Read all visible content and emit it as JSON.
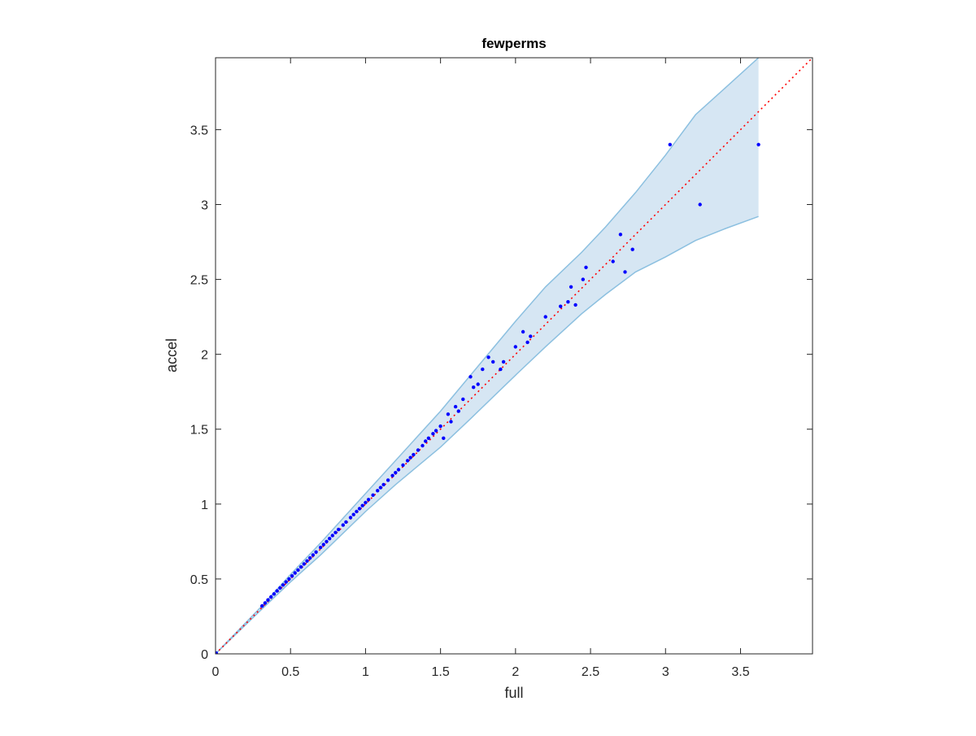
{
  "chart_data": {
    "type": "scatter",
    "title": "fewperms",
    "xlabel": "full",
    "ylabel": "accel",
    "xlim": [
      0,
      3.98
    ],
    "ylim": [
      0,
      3.98
    ],
    "x_ticks": [
      0,
      0.5,
      1,
      1.5,
      2,
      2.5,
      3,
      3.5
    ],
    "y_ticks": [
      0,
      0.5,
      1,
      1.5,
      2,
      2.5,
      3,
      3.5
    ],
    "x_tick_labels": [
      "0",
      "0.5",
      "1",
      "1.5",
      "2",
      "2.5",
      "3",
      "3.5"
    ],
    "y_tick_labels": [
      "0",
      "0.5",
      "1",
      "1.5",
      "2",
      "2.5",
      "3",
      "3.5"
    ],
    "grid": false,
    "box": true,
    "colors": {
      "points": "#0000ff",
      "band_fill": "#d6e6f3",
      "band_edge": "#8cc0e0",
      "identity_line": "#ff0000",
      "axes": "#262626"
    },
    "reference_line": {
      "type": "identity",
      "style": "dotted",
      "from": [
        0,
        0
      ],
      "to": [
        3.98,
        3.98
      ]
    },
    "band": {
      "x": [
        0,
        0.3,
        0.5,
        0.7,
        1,
        1.2,
        1.5,
        1.7,
        2,
        2.2,
        2.44,
        2.6,
        2.8,
        3,
        3.2,
        3.4,
        3.62
      ],
      "upper": [
        0,
        0.31,
        0.53,
        0.74,
        1.07,
        1.29,
        1.62,
        1.86,
        2.22,
        2.45,
        2.68,
        2.85,
        3.08,
        3.33,
        3.6,
        3.78,
        3.98
      ],
      "lower": [
        0,
        0.29,
        0.48,
        0.66,
        0.95,
        1.13,
        1.38,
        1.57,
        1.86,
        2.05,
        2.27,
        2.4,
        2.55,
        2.65,
        2.76,
        2.84,
        2.92
      ]
    },
    "series": [
      {
        "x": [
          0.005,
          0.31,
          0.33,
          0.35,
          0.37,
          0.39,
          0.41,
          0.43,
          0.45,
          0.47,
          0.49,
          0.51,
          0.53,
          0.55,
          0.57,
          0.59,
          0.61,
          0.63,
          0.65,
          0.67,
          0.7,
          0.72,
          0.74,
          0.76,
          0.78,
          0.8,
          0.82,
          0.85,
          0.87,
          0.9,
          0.92,
          0.94,
          0.96,
          0.98,
          1.0,
          1.02,
          1.05,
          1.08,
          1.1,
          1.12,
          1.15,
          1.18,
          1.2,
          1.22,
          1.25,
          1.28,
          1.3,
          1.32,
          1.35,
          1.38,
          1.4,
          1.42,
          1.45,
          1.47,
          1.5,
          1.52,
          1.55,
          1.57,
          1.6,
          1.62,
          1.65,
          1.7,
          1.72,
          1.75,
          1.78,
          1.82,
          1.85,
          1.9,
          1.92,
          2.0,
          2.05,
          2.08,
          2.1,
          2.2,
          2.3,
          2.35,
          2.37,
          2.4,
          2.45,
          2.47,
          2.65,
          2.7,
          2.73,
          2.78,
          3.03,
          3.23,
          3.62
        ],
        "y": [
          0.005,
          0.32,
          0.34,
          0.36,
          0.38,
          0.4,
          0.42,
          0.44,
          0.46,
          0.48,
          0.5,
          0.52,
          0.54,
          0.56,
          0.58,
          0.6,
          0.62,
          0.64,
          0.66,
          0.68,
          0.71,
          0.73,
          0.75,
          0.77,
          0.79,
          0.81,
          0.83,
          0.86,
          0.88,
          0.91,
          0.93,
          0.95,
          0.97,
          0.99,
          1.01,
          1.03,
          1.06,
          1.09,
          1.11,
          1.13,
          1.16,
          1.19,
          1.21,
          1.23,
          1.26,
          1.29,
          1.31,
          1.33,
          1.36,
          1.39,
          1.42,
          1.44,
          1.47,
          1.49,
          1.52,
          1.44,
          1.6,
          1.55,
          1.65,
          1.62,
          1.7,
          1.85,
          1.78,
          1.8,
          1.9,
          1.98,
          1.95,
          1.9,
          1.95,
          2.05,
          2.15,
          2.08,
          2.12,
          2.25,
          2.32,
          2.35,
          2.45,
          2.33,
          2.5,
          2.58,
          2.62,
          2.8,
          2.55,
          2.7,
          3.4,
          3.0,
          3.4
        ]
      }
    ]
  }
}
